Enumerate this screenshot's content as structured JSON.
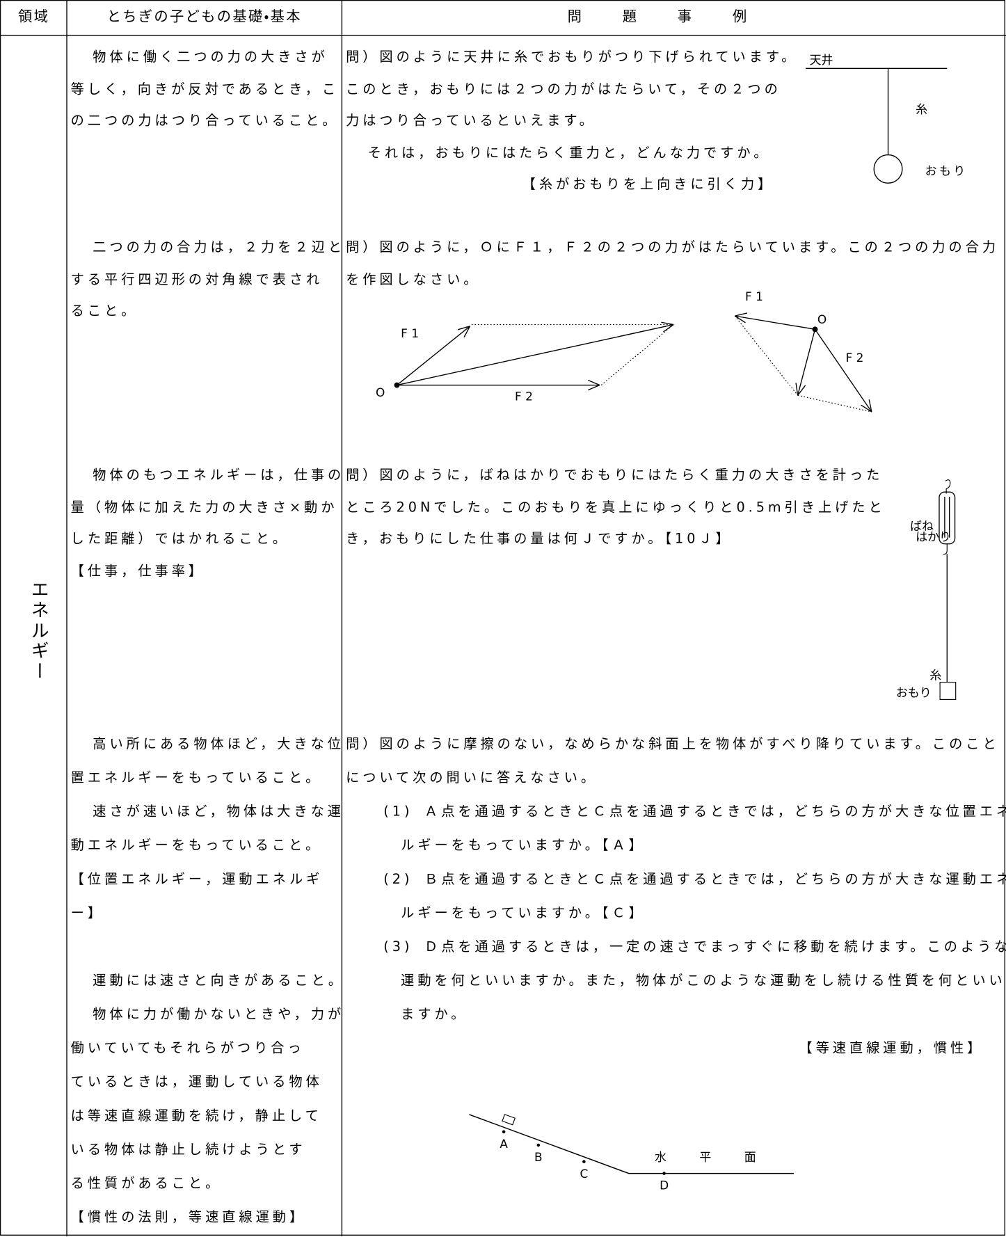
{
  "header": {
    "domain": "領域",
    "basics": "とちぎの子どもの基礎・基本",
    "examples": "問題事例"
  },
  "domain": "エネルギー",
  "sections": [
    {
      "basics": [
        "物体に働く二つの力の大きさが",
        "等しく，向きが反対であるとき，こ",
        "の二つの力はつり合っていること。"
      ],
      "question": [
        "問）図のように天井に糸でおもりがつり下げられています。",
        "このとき，おもりには２つの力がはたらいて，その２つの",
        "力はつり合っているといえます。",
        "それは，おもりにはたらく重力と，どんな力ですか。"
      ],
      "answer": "【糸がおもりを上向きに引く力】",
      "figure": {
        "ceiling": "天井",
        "string": "糸",
        "weight": "おもり"
      }
    },
    {
      "basics": [
        "二つの力の合力は，２力を２辺と",
        "する平行四辺形の対角線で表され",
        "ること。"
      ],
      "question": [
        "問）図のように，ＯにＦ１，Ｆ２の２つの力がはたらいています。この２つの力の合力",
        "を作図しなさい。"
      ],
      "figure": {
        "left": {
          "f1": "F 1",
          "f2": "F 2",
          "origin": "O"
        },
        "right": {
          "f1": "F 1",
          "f2": "F 2",
          "origin": "O"
        }
      }
    },
    {
      "basics": [
        "物体のもつエネルギーは，仕事の",
        "量（物体に加えた力の大きさ×動か",
        "した距離）ではかれること。",
        "【仕事，仕事率】"
      ],
      "question": [
        "問）図のように，ばねはかりでおもりにはたらく重力の大きさを計った",
        "ところ20Nでした。このおもりを真上にゆっくりと0.5m引き上げたと",
        "き，おもりにした仕事の量は何Ｊですか。【10Ｊ】"
      ],
      "figure": {
        "spring": "ばね",
        "scale": "はかり",
        "string": "糸",
        "weight": "おもり"
      }
    },
    {
      "basics": [
        "高い所にある物体ほど，大きな位",
        "置エネルギーをもっていること。",
        "速さが速いほど，物体は大きな運",
        "動エネルギーをもっていること。",
        "【位置エネルギー，運動エネルギ",
        "ー】",
        "運動には速さと向きがあること。",
        "物体に力が働かないときや，力が",
        "働いていてもそれらがつり合っ",
        "ているときは，運動している物体",
        "は等速直線運動を続け，静止して",
        "いる物体は静止し続けようとす",
        "る性質があること。",
        "【慣性の法則，等速直線運動】"
      ],
      "question": [
        "問）図のように摩擦のない，なめらかな斜面上を物体がすべり降りています。このこと",
        "について次の問いに答えなさい。"
      ],
      "items": [
        {
          "number": "(1)",
          "lines": [
            "Ａ点を通過するときとＣ点を通過するときでは，どちらの方が大きな位置エネ",
            "ルギーをもっていますか。【Ａ】"
          ]
        },
        {
          "number": "(2)",
          "lines": [
            "Ｂ点を通過するときとＣ点を通過するときでは，どちらの方が大きな運動エネ",
            "ルギーをもっていますか。【Ｃ】"
          ]
        },
        {
          "number": "(3)",
          "lines": [
            "Ｄ点を通過するときは，一定の速さでまっすぐに移動を続けます。このような",
            "運動を何といいますか。また，物体がこのような運動をし続ける性質を何といい",
            "ますか。"
          ]
        }
      ],
      "answer": "【等速直線運動，慣性】",
      "figure": {
        "a": "A",
        "b": "B",
        "c": "C",
        "d": "D",
        "surface": "水平面"
      }
    }
  ]
}
